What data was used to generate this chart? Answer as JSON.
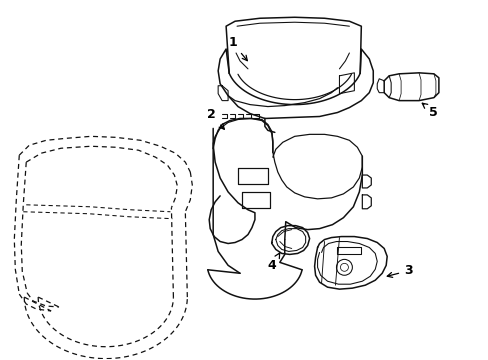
{
  "background": "#ffffff",
  "line_color": "#111111",
  "dashed_color": "#111111",
  "label_color": "#000000",
  "line_width": 1.1,
  "dashed_lw": 0.9,
  "fig_w": 4.89,
  "fig_h": 3.6,
  "dpi": 100
}
